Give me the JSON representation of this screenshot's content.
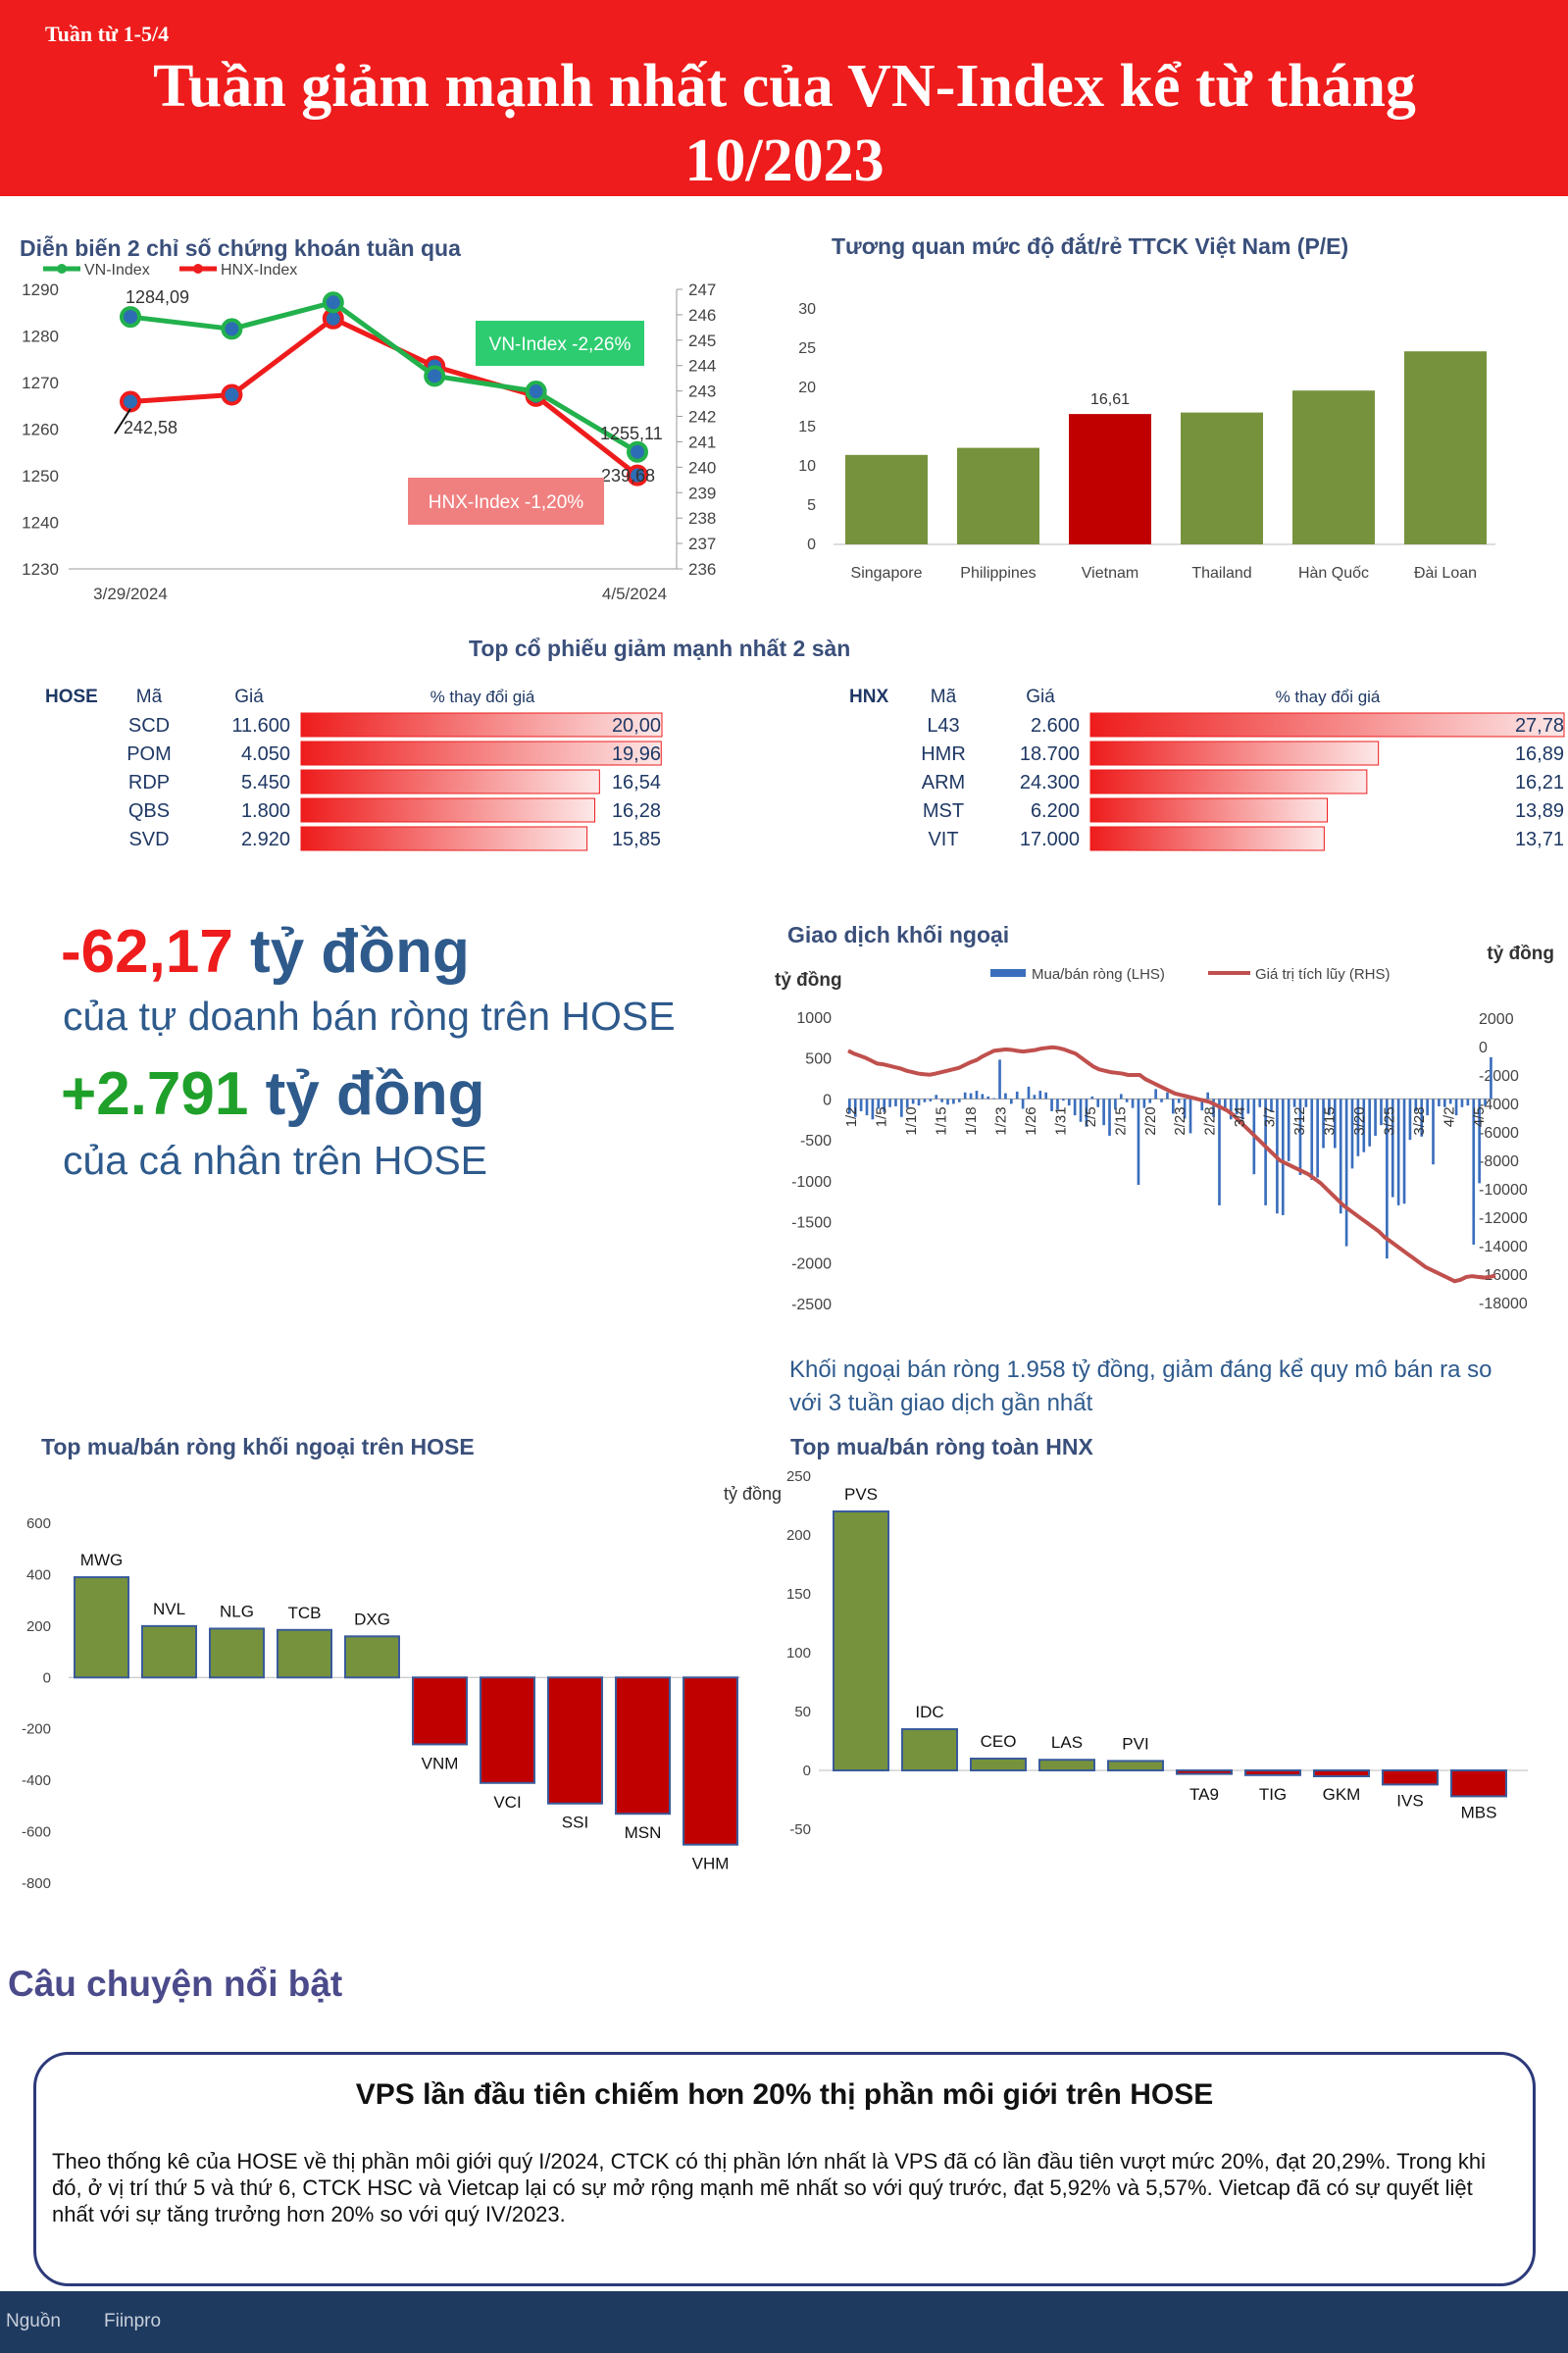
{
  "header": {
    "week": "Tuần từ 1-5/4",
    "title_line1": "Tuần giảm mạnh nhất của VN-Index kể từ tháng",
    "title_line2": "10/2023"
  },
  "colors": {
    "red": "#ee1c1c",
    "green": "#76923c",
    "dark_red": "#c00000",
    "blue": "#3a6ebd",
    "navy": "#1f3a5f"
  },
  "index_chart": {
    "title": "Diễn biến 2 chỉ số chứng khoán tuần qua",
    "left_ticks": [
      "1290",
      "1280",
      "1270",
      "1260",
      "1250",
      "1240",
      "1230"
    ],
    "right_ticks": [
      "247",
      "246",
      "245",
      "244",
      "243",
      "242",
      "241",
      "240",
      "239",
      "238",
      "237",
      "236"
    ],
    "x_labels": [
      "3/29/2024",
      "4/5/2024"
    ],
    "vn_start_label": "1284,09",
    "vn_end_label": "1255,11",
    "hnx_start_label": "242,58",
    "hnx_end_label": "239,68",
    "vn_callout": "VN-Index -2,26%",
    "hnx_callout": "HNX-Index -1,20%"
  },
  "pe_chart": {
    "title": "Tương quan mức độ đắt/rẻ TTCK Việt Nam (P/E)",
    "y_ticks": [
      "30",
      "25",
      "20",
      "15",
      "10",
      "5",
      "0"
    ],
    "highlight_label": "16,61"
  },
  "top_decliners": {
    "title": "Top cổ phiếu giảm mạnh nhất 2 sàn",
    "hose": {
      "exchange": "HOSE",
      "col_code": "Mã",
      "col_price": "Giá",
      "col_change": "% thay đổi giá",
      "rows": [
        {
          "code": "SCD",
          "price": "11.600",
          "change": "20,00",
          "value": 20.0
        },
        {
          "code": "POM",
          "price": "4.050",
          "change": "19,96",
          "value": 19.96
        },
        {
          "code": "RDP",
          "price": "5.450",
          "change": "16,54",
          "value": 16.54
        },
        {
          "code": "QBS",
          "price": "1.800",
          "change": "16,28",
          "value": 16.28
        },
        {
          "code": "SVD",
          "price": "2.920",
          "change": "15,85",
          "value": 15.85
        }
      ]
    },
    "hnx": {
      "exchange": "HNX",
      "col_code": "Mã",
      "col_price": "Giá",
      "col_change": "% thay đổi giá",
      "rows": [
        {
          "code": "L43",
          "price": "2.600",
          "change": "27,78",
          "value": 27.78
        },
        {
          "code": "HMR",
          "price": "18.700",
          "change": "16,89",
          "value": 16.89
        },
        {
          "code": "ARM",
          "price": "24.300",
          "change": "16,21",
          "value": 16.21
        },
        {
          "code": "MST",
          "price": "6.200",
          "change": "13,89",
          "value": 13.89
        },
        {
          "code": "VIT",
          "price": "17.000",
          "change": "13,71",
          "value": 13.71
        }
      ]
    }
  },
  "flows": {
    "prop_value": "-62,17",
    "prop_unit": "tỷ đồng",
    "prop_desc": "của tự doanh bán ròng trên HOSE",
    "indiv_value": "+2.791",
    "indiv_unit": "tỷ đồng",
    "indiv_desc": "của cá nhân trên HOSE"
  },
  "foreign_chart": {
    "title": "Giao dịch khối ngoại",
    "left_unit": "tỷ đồng",
    "right_unit": "tỷ đồng",
    "legend_bars": "Mua/bán ròng (LHS)",
    "legend_line": "Giá trị tích lũy (RHS)",
    "left_ticks": [
      "1000",
      "500",
      "0",
      "-500",
      "-1000",
      "-1500",
      "-2000",
      "-2500"
    ],
    "right_ticks": [
      "2000",
      "0",
      "-2000",
      "-4000",
      "-6000",
      "-8000",
      "-10000",
      "-12000",
      "-14000",
      "-16000",
      "-18000"
    ],
    "x_labels": [
      "1/2",
      "1/5",
      "1/10",
      "1/15",
      "1/18",
      "1/23",
      "1/26",
      "1/31",
      "2/5",
      "2/15",
      "2/20",
      "2/23",
      "2/28",
      "3/4",
      "3/7",
      "3/12",
      "3/15",
      "3/20",
      "3/25",
      "3/28",
      "4/2",
      "4/5"
    ],
    "note": "Khối ngoại bán ròng 1.958 tỷ đồng, giảm đáng kể quy mô bán ra so với 3 tuần giao dịch gần nhất"
  },
  "hose_foreign": {
    "title": "Top mua/bán ròng khối ngoại trên HOSE",
    "y_ticks": [
      "600",
      "400",
      "200",
      "0",
      "-200",
      "-400",
      "-600",
      "-800"
    ]
  },
  "hnx_foreign": {
    "title": "Top mua/bán ròng toàn HNX",
    "unit": "tỷ đồng",
    "y_ticks": [
      "250",
      "200",
      "150",
      "100",
      "50",
      "0",
      "-50"
    ]
  },
  "story": {
    "section_title": "Câu chuyện nổi bật",
    "headline": "VPS lần đầu tiên chiếm hơn 20% thị phần môi giới trên HOSE",
    "body": "Theo thống kê của HOSE về thị phần môi giới quý I/2024, CTCK có thị phần lớn nhất là VPS đã có lần đầu tiên vượt mức 20%, đạt 20,29%. Trong khi đó, ở vị trí thứ 5 và thứ 6, CTCK HSC và Vietcap lại có sự mở rộng mạnh mẽ nhất so với quý trước, đạt 5,92% và 5,57%. Vietcap đã có sự quyết liệt nhất với sự tăng trưởng hơn 20% so với quý IV/2023."
  },
  "footer": {
    "source_label": "Nguồn",
    "source": "Fiinpro"
  },
  "chart_data": [
    {
      "type": "line",
      "title": "Diễn biến 2 chỉ số chứng khoán tuần qua",
      "x": [
        "3/29/2024",
        "4/1/2024",
        "4/2/2024",
        "4/3/2024",
        "4/4/2024",
        "4/5/2024"
      ],
      "series": [
        {
          "name": "VN-Index",
          "axis": "left",
          "values": [
            1284.09,
            1281.5,
            1287.2,
            1271.4,
            1268.1,
            1255.11
          ]
        },
        {
          "name": "HNX-Index",
          "axis": "right",
          "values": [
            242.58,
            242.85,
            245.85,
            243.97,
            242.8,
            239.68
          ]
        }
      ],
      "ylim_left": [
        1230,
        1290
      ],
      "ylim_right": [
        236,
        247
      ]
    },
    {
      "type": "bar",
      "title": "Tương quan mức độ đắt/rẻ TTCK Việt Nam (P/E)",
      "categories": [
        "Singapore",
        "Philippines",
        "Vietnam",
        "Thailand",
        "Hàn Quốc",
        "Đài Loan"
      ],
      "values": [
        11.4,
        12.3,
        16.61,
        16.8,
        19.6,
        24.6
      ],
      "ylim": [
        0,
        30
      ]
    },
    {
      "type": "bar",
      "title": "Giao dịch khối ngoại",
      "bars_name": "Mua/bán ròng (LHS)",
      "line_name": "Giá trị tích lũy (RHS)",
      "bar_values": [
        -180,
        -220,
        -150,
        -200,
        -250,
        -120,
        -160,
        -100,
        -90,
        -220,
        -110,
        -60,
        -80,
        -40,
        -30,
        50,
        -40,
        -70,
        -60,
        -40,
        80,
        70,
        100,
        60,
        30,
        10,
        480,
        70,
        -60,
        90,
        -120,
        150,
        50,
        100,
        80,
        -150,
        -130,
        -20,
        -80,
        -200,
        -280,
        -340,
        30,
        -100,
        -320,
        -450,
        -130,
        60,
        -40,
        -110,
        -1050,
        -110,
        -50,
        120,
        -40,
        80,
        -180,
        -50,
        -240,
        -420,
        -20,
        -140,
        80,
        -220,
        -1300,
        -150,
        -250,
        -190,
        -250,
        -180,
        -920,
        -100,
        -1300,
        -160,
        -1400,
        -1420,
        -760,
        -100,
        -930,
        -100,
        -990,
        -960,
        -600,
        -200,
        -600,
        -1400,
        -1800,
        -850,
        -700,
        -650,
        -580,
        -450,
        -320,
        -1950,
        -1200,
        -1300,
        -1280,
        -500,
        -150,
        -460,
        -200,
        -800,
        -90,
        -100,
        -60,
        -200,
        -100,
        -80,
        -1780,
        -1030,
        -80,
        510
      ],
      "line_values": [
        -300,
        -500,
        -650,
        -800,
        -1000,
        -1200,
        -1250,
        -1350,
        -1450,
        -1550,
        -1700,
        -1800,
        -1900,
        -1950,
        -1980,
        -1900,
        -1800,
        -1700,
        -1600,
        -1500,
        -1300,
        -1100,
        -950,
        -700,
        -500,
        -300,
        -250,
        -200,
        -230,
        -300,
        -350,
        -300,
        -250,
        -150,
        -100,
        -50,
        -100,
        -200,
        -350,
        -500,
        -800,
        -1100,
        -1400,
        -1600,
        -1700,
        -1800,
        -1850,
        -1900,
        -2000,
        -2000,
        -2000,
        -2300,
        -2500,
        -2700,
        -2900,
        -3100,
        -3300,
        -3400,
        -3500,
        -3600,
        -3700,
        -3800,
        -3900,
        -4100,
        -4300,
        -4500,
        -4800,
        -5200,
        -5600,
        -6000,
        -6400,
        -6800,
        -7200,
        -7600,
        -8000,
        -8200,
        -8400,
        -8600,
        -8800,
        -9000,
        -9300,
        -9600,
        -10000,
        -10400,
        -10800,
        -11200,
        -11500,
        -11800,
        -12100,
        -12400,
        -12700,
        -13000,
        -13400,
        -13700,
        -14000,
        -14300,
        -14600,
        -14900,
        -15200,
        -15500,
        -15700,
        -15900,
        -16100,
        -16300,
        -16500,
        -16400,
        -16200,
        -16150,
        -16200,
        -16250,
        -16200,
        -16100
      ],
      "ylim_left": [
        -2500,
        1000
      ],
      "ylim_right": [
        -18000,
        2000
      ]
    },
    {
      "type": "bar",
      "title": "Top mua/bán ròng khối ngoại trên HOSE",
      "categories": [
        "MWG",
        "NVL",
        "NLG",
        "TCB",
        "DXG",
        "VNM",
        "VCI",
        "SSI",
        "MSN",
        "VHM"
      ],
      "values": [
        390,
        200,
        190,
        185,
        160,
        -260,
        -410,
        -490,
        -530,
        -650
      ],
      "ylim": [
        -800,
        600
      ]
    },
    {
      "type": "bar",
      "title": "Top mua/bán ròng toàn HNX",
      "categories": [
        "PVS",
        "IDC",
        "CEO",
        "LAS",
        "PVI",
        "TA9",
        "TIG",
        "GKM",
        "IVS",
        "MBS"
      ],
      "values": [
        220,
        35,
        10,
        9,
        8,
        -3,
        -4,
        -5,
        -12,
        -22
      ],
      "ylim": [
        -50,
        250
      ]
    }
  ]
}
